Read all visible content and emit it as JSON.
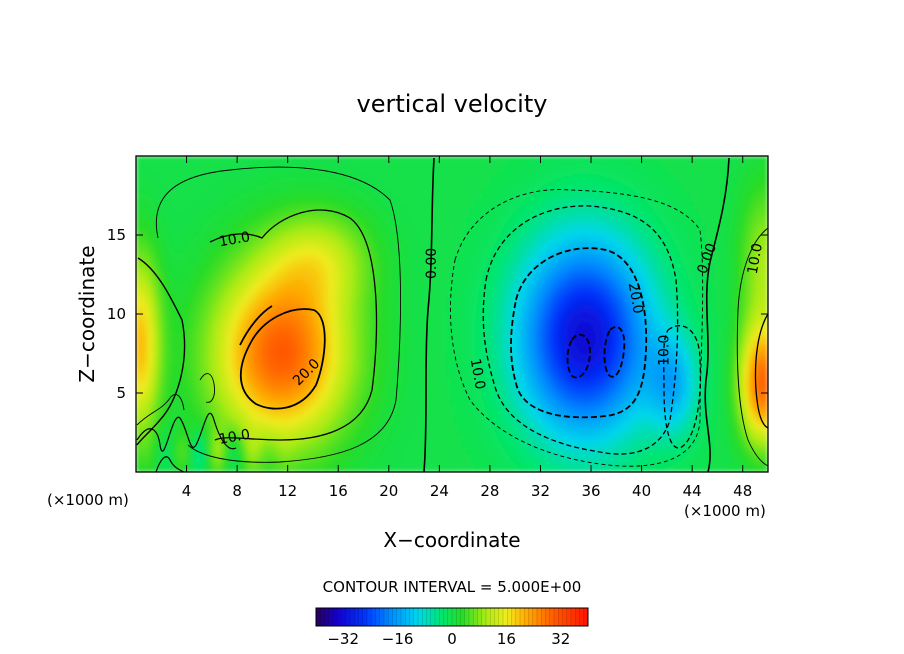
{
  "chart_data": {
    "type": "heatmap",
    "title": "vertical velocity",
    "xlabel": "X−coordinate",
    "ylabel": "Z−coordinate",
    "x_unit_left": "(×1000 m)",
    "x_unit_right": "(×1000 m)",
    "xlim": [
      0,
      50
    ],
    "ylim": [
      0,
      20
    ],
    "x_ticks": [
      4,
      8,
      12,
      16,
      20,
      24,
      28,
      32,
      36,
      40,
      44,
      48
    ],
    "y_ticks": [
      5,
      10,
      15
    ],
    "contour_interval_text": "CONTOUR INTERVAL = 5.000E+00",
    "colorbar": {
      "range": [
        -40,
        40
      ],
      "ticks": [
        -32,
        -16,
        0,
        16,
        32
      ],
      "tick_labels": [
        "−32",
        "−16",
        "0",
        "16",
        "32"
      ]
    },
    "contour_labels": [
      {
        "text": "10.0",
        "x": 7.8,
        "y": 14.7,
        "rot": -10
      },
      {
        "text": "20.0",
        "x": 13.5,
        "y": 6.3,
        "rot": -45
      },
      {
        "text": "10.0",
        "x": 7.8,
        "y": 2.2,
        "rot": -10
      },
      {
        "text": "0.00",
        "x": 23.4,
        "y": 13.2,
        "rot": -90
      },
      {
        "text": "20.0",
        "x": 39.5,
        "y": 11.0,
        "rot": 80
      },
      {
        "text": "10.0",
        "x": 27.0,
        "y": 6.2,
        "rot": 80
      },
      {
        "text": "10.0",
        "x": 41.8,
        "y": 7.7,
        "rot": -90
      },
      {
        "text": "0.00",
        "x": 45.2,
        "y": 13.5,
        "rot": -70
      },
      {
        "text": "10.0",
        "x": 49.0,
        "y": 13.5,
        "rot": -80
      }
    ],
    "features": [
      {
        "name": "updraft-main",
        "x": 11.5,
        "z": 7.5,
        "peak": 28
      },
      {
        "name": "downdraft-main",
        "x": 35.5,
        "z": 8.0,
        "peak": -30
      },
      {
        "name": "updraft-right-edge",
        "x": 49.2,
        "z": 5.5,
        "peak": 25
      },
      {
        "name": "updraft-left-edge",
        "x": 0.3,
        "z": 8.0,
        "peak": 18
      }
    ]
  }
}
